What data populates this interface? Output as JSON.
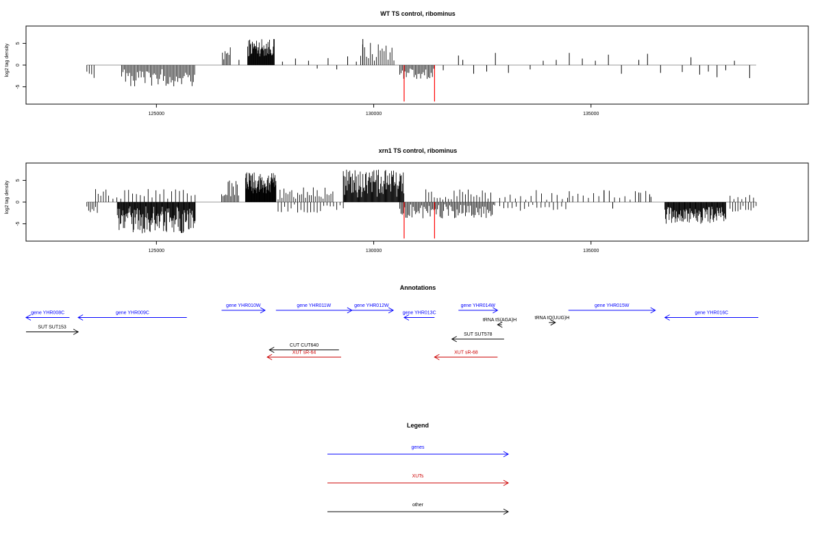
{
  "panels": [
    {
      "title": "WT TS control, ribominus",
      "ylabel": "log2 tag density",
      "yticks": [
        -5,
        0,
        5
      ],
      "ylim": [
        -9,
        9
      ],
      "xlim": [
        122000,
        140000
      ],
      "xticks": [
        125000,
        130000,
        135000
      ],
      "mark_color": "#000000",
      "highlight_color": "#ff0000",
      "highlight_marks": [
        {
          "x": 130700,
          "y": -8.4
        },
        {
          "x": 131400,
          "y": -8.4
        }
      ],
      "bar_regions": [
        {
          "start": 123400,
          "end": 123600,
          "sign": -1,
          "min": 1.5,
          "max": 3,
          "step": 55
        },
        {
          "start": 124200,
          "end": 125900,
          "sign": -1,
          "min": 0.8,
          "max": 5,
          "step": 30
        },
        {
          "start": 126520,
          "end": 126700,
          "sign": 1,
          "min": 1,
          "max": 4.2,
          "step": 30
        },
        {
          "start": 127100,
          "end": 127720,
          "sign": 1,
          "min": 2,
          "max": 6.2,
          "step": 12
        },
        {
          "start": 129700,
          "end": 130500,
          "sign": 1,
          "min": 0.8,
          "max": 5.5,
          "step": 45
        },
        {
          "start": 130600,
          "end": 131400,
          "sign": -1,
          "min": 0.8,
          "max": 3.2,
          "step": 30
        }
      ],
      "scattered_bars": [
        {
          "x": 126900,
          "y": 1.2
        },
        {
          "x": 127900,
          "y": 0.8
        },
        {
          "x": 128200,
          "y": 1.5
        },
        {
          "x": 128500,
          "y": 1.0
        },
        {
          "x": 128700,
          "y": -0.8
        },
        {
          "x": 128950,
          "y": 1.6
        },
        {
          "x": 129150,
          "y": -1.0
        },
        {
          "x": 129400,
          "y": 2.0
        },
        {
          "x": 129600,
          "y": 0.8
        },
        {
          "x": 129750,
          "y": 6.0
        },
        {
          "x": 131600,
          "y": -1.2
        },
        {
          "x": 131950,
          "y": 2.2
        },
        {
          "x": 132050,
          "y": 1.2
        },
        {
          "x": 132300,
          "y": -2.0
        },
        {
          "x": 132600,
          "y": -1.5
        },
        {
          "x": 132800,
          "y": 2.8
        },
        {
          "x": 133100,
          "y": -1.8
        },
        {
          "x": 133600,
          "y": -1.0
        },
        {
          "x": 133900,
          "y": 1.0
        },
        {
          "x": 134200,
          "y": 1.2
        },
        {
          "x": 134500,
          "y": 2.8
        },
        {
          "x": 134800,
          "y": 1.5
        },
        {
          "x": 135100,
          "y": 1.0
        },
        {
          "x": 135400,
          "y": 2.4
        },
        {
          "x": 135700,
          "y": -2.0
        },
        {
          "x": 136100,
          "y": 1.2
        },
        {
          "x": 136300,
          "y": 2.6
        },
        {
          "x": 136600,
          "y": -1.8
        },
        {
          "x": 137100,
          "y": -1.6
        },
        {
          "x": 137300,
          "y": 1.8
        },
        {
          "x": 137500,
          "y": -2.2
        },
        {
          "x": 137700,
          "y": -1.5
        },
        {
          "x": 137900,
          "y": -2.8
        },
        {
          "x": 138100,
          "y": -1.2
        },
        {
          "x": 138300,
          "y": 1.0
        },
        {
          "x": 138650,
          "y": -3.0
        }
      ]
    },
    {
      "title": "xrn1 TS control, ribominus",
      "ylabel": "log2 tag density",
      "yticks": [
        -5,
        0,
        5
      ],
      "ylim": [
        -9,
        9
      ],
      "xlim": [
        122000,
        140000
      ],
      "xticks": [
        125000,
        130000,
        135000
      ],
      "mark_color": "#000000",
      "highlight_color": "#ff0000",
      "highlight_marks": [
        {
          "x": 130700,
          "y": -8.4
        },
        {
          "x": 131400,
          "y": -8.4
        }
      ],
      "bar_regions": [
        {
          "start": 123400,
          "end": 123650,
          "sign": -1,
          "min": 1,
          "max": 3.2,
          "step": 40
        },
        {
          "start": 123600,
          "end": 123900,
          "sign": 1,
          "min": 0.5,
          "max": 3,
          "step": 60
        },
        {
          "start": 124100,
          "end": 125900,
          "sign": -1,
          "min": 1,
          "max": 7.2,
          "step": 14
        },
        {
          "start": 124000,
          "end": 125900,
          "sign": 1,
          "min": 0.5,
          "max": 3,
          "step": 90
        },
        {
          "start": 126500,
          "end": 126900,
          "sign": 1,
          "min": 1,
          "max": 5,
          "step": 30
        },
        {
          "start": 127050,
          "end": 127750,
          "sign": 1,
          "min": 2,
          "max": 7,
          "step": 10
        },
        {
          "start": 127800,
          "end": 129100,
          "sign": 1,
          "min": 0.5,
          "max": 3.5,
          "step": 45
        },
        {
          "start": 127800,
          "end": 129300,
          "sign": -1,
          "min": 0.5,
          "max": 2.5,
          "step": 75
        },
        {
          "start": 129300,
          "end": 130700,
          "sign": 1,
          "min": 1,
          "max": 7.5,
          "step": 15
        },
        {
          "start": 130600,
          "end": 132800,
          "sign": -1,
          "min": 0.5,
          "max": 3.8,
          "step": 28
        },
        {
          "start": 131200,
          "end": 132700,
          "sign": 1,
          "min": 0.5,
          "max": 3,
          "step": 65
        },
        {
          "start": 132900,
          "end": 134500,
          "sign": -1,
          "min": 0.5,
          "max": 2,
          "step": 95
        },
        {
          "start": 132900,
          "end": 136400,
          "sign": 1,
          "min": 0.5,
          "max": 2.8,
          "step": 120
        },
        {
          "start": 136700,
          "end": 138100,
          "sign": -1,
          "min": 1,
          "max": 5,
          "step": 14
        },
        {
          "start": 138200,
          "end": 138800,
          "sign": -1,
          "min": 0.5,
          "max": 2.2,
          "step": 60
        },
        {
          "start": 138200,
          "end": 138800,
          "sign": 1,
          "min": 0.5,
          "max": 2.2,
          "step": 90
        }
      ],
      "scattered_bars": [
        {
          "x": 134500,
          "y": 2.5
        },
        {
          "x": 135300,
          "y": 2.7
        },
        {
          "x": 136100,
          "y": 2.2
        },
        {
          "x": 136350,
          "y": 1.8
        },
        {
          "x": 135500,
          "y": -1.5
        }
      ]
    }
  ],
  "annotations": {
    "title": "Annotations",
    "items": [
      {
        "label": "gene YHR008C",
        "color": "#0000ff",
        "start": 121900,
        "end": 123000,
        "dir": "left",
        "row": 1
      },
      {
        "label": "gene YHR009C",
        "color": "#0000ff",
        "start": 123200,
        "end": 125700,
        "dir": "left",
        "row": 1
      },
      {
        "label": "gene YHR010W",
        "color": "#0000ff",
        "start": 126500,
        "end": 127500,
        "dir": "right",
        "row": 0
      },
      {
        "label": "gene YHR011W",
        "color": "#0000ff",
        "start": 127750,
        "end": 129500,
        "dir": "right",
        "row": 0
      },
      {
        "label": "gene YHR012W",
        "color": "#0000ff",
        "start": 129450,
        "end": 130450,
        "dir": "right",
        "row": 0
      },
      {
        "label": "gene YHR013C",
        "color": "#0000ff",
        "start": 130700,
        "end": 131400,
        "dir": "left",
        "row": 1
      },
      {
        "label": "gene YHR014W",
        "color": "#0000ff",
        "start": 131950,
        "end": 132850,
        "dir": "right",
        "row": 0
      },
      {
        "label": "gene YHR015W",
        "color": "#0000ff",
        "start": 134480,
        "end": 136480,
        "dir": "right",
        "row": 0
      },
      {
        "label": "gene YHR016C",
        "color": "#0000ff",
        "start": 136700,
        "end": 138850,
        "dir": "left",
        "row": 1
      },
      {
        "label": "tRNA tS(AGA)H",
        "color": "#000000",
        "start": 132850,
        "end": 132950,
        "dir": "left",
        "row": 2
      },
      {
        "label": "tRNA tQ(UUG)H",
        "color": "#000000",
        "start": 134030,
        "end": 134180,
        "dir": "right",
        "row": 1.7
      },
      {
        "label": "SUT SUT153",
        "color": "#000000",
        "start": 122000,
        "end": 123200,
        "dir": "right",
        "row": 3
      },
      {
        "label": "SUT SUT578",
        "color": "#000000",
        "start": 131800,
        "end": 133000,
        "dir": "left",
        "row": 4
      },
      {
        "label": "CUT CUT640",
        "color": "#000000",
        "start": 127600,
        "end": 129200,
        "dir": "left",
        "row": 5.5
      },
      {
        "label": "XUT sR-64",
        "color": "#cc0000",
        "start": 127550,
        "end": 129250,
        "dir": "left",
        "row": 6.5
      },
      {
        "label": "XUT sR-68",
        "color": "#cc0000",
        "start": 131400,
        "end": 132850,
        "dir": "left",
        "row": 6.5
      }
    ]
  },
  "legend": {
    "title": "Legend",
    "entries": [
      {
        "label": "genes",
        "color": "#0000ff"
      },
      {
        "label": "XUTs",
        "color": "#cc0000"
      },
      {
        "label": "other",
        "color": "#000000"
      }
    ]
  }
}
